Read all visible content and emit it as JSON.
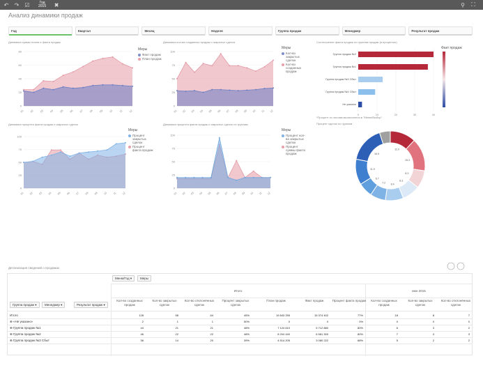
{
  "toolbar": {
    "selection_label": "Год",
    "selection_value": "2015"
  },
  "sheet_title": "Анализ динамики продаж",
  "filters": [
    {
      "label": "Год",
      "active": true
    },
    {
      "label": "Квартал",
      "active": false
    },
    {
      "label": "Месяц",
      "active": false
    },
    {
      "label": "Неделя",
      "active": false
    },
    {
      "label": "Группа продаж",
      "active": false
    },
    {
      "label": "Менеджер",
      "active": false
    },
    {
      "label": "Результат продаж",
      "active": false
    }
  ],
  "colors": {
    "blue": "#7f8fc9",
    "pink": "#e8a0ab",
    "dark_red": "#b5283a",
    "light_blue": "#a9cdef",
    "mid_blue": "#5f9fde",
    "navy": "#2e4da6",
    "grey": "#9e9e9e"
  },
  "charts": {
    "c1": {
      "title": "Динамика суммы плана и факта продаж",
      "legend_title": "Меры",
      "legend": [
        "Факт продаж",
        "План продаж"
      ]
    },
    "c2": {
      "title": "Динамика кол-ва созданных продаж и закрытых сделок",
      "legend_title": "Меры",
      "legend": [
        "Кол-во закрытых сделок",
        "Кол-во созданных продаж"
      ]
    },
    "c3": {
      "title": "Динамика процента факта продаж и закрытых сделок",
      "legend_title": "Меры",
      "legend": [
        "Процент закрытых сделок",
        "Процент факта продаж"
      ]
    },
    "c4": {
      "title": "Динамика процента факта продаж и закрытых сделок по группам",
      "legend_title": "Меры",
      "legend": [
        "Процент кол-ва закрытых сделок",
        "Процент суммы факта продаж"
      ]
    },
    "c5": {
      "title": "Соотношение факта продаж по группам продаж (в процентах)",
      "legend_title": "Факт продаж",
      "categories": [
        "Группа продаж №2",
        "Группа продаж №1",
        "Группа продаж №3 Сбыт",
        "Группа продаж №4 Сбыт",
        "Не указано"
      ]
    },
    "c6": {
      "title": "Процент сделок по группам",
      "caption1": "*Процент по числам вычисляется в \"Меню/Выбор\"",
      "segment_labels": [
        "12.0",
        "15.3",
        "8.3",
        "8.3",
        "8.4",
        "7.2",
        "6.7",
        "11.9",
        "16.9"
      ]
    }
  },
  "chart_data": [
    {
      "type": "area",
      "title": "Динамика суммы плана и факта продаж",
      "categories": [
        "01",
        "02",
        "03",
        "04",
        "05",
        "06",
        "07",
        "08",
        "09",
        "10",
        "11",
        "12"
      ],
      "series": [
        {
          "name": "Факт продаж",
          "values": [
            22,
            20,
            26,
            24,
            28,
            26,
            27,
            30,
            31,
            31,
            30,
            29
          ]
        },
        {
          "name": "План продаж",
          "values": [
            24,
            24,
            37,
            36,
            45,
            50,
            58,
            66,
            70,
            72,
            62,
            56
          ]
        }
      ],
      "ylim": [
        0,
        80
      ]
    },
    {
      "type": "area",
      "title": "Динамика кол-ва созданных продаж и закрытых сделок",
      "categories": [
        "01",
        "02",
        "03",
        "04",
        "05",
        "06",
        "07",
        "08",
        "09",
        "10",
        "11",
        "12"
      ],
      "series": [
        {
          "name": "Кол-во закрытых сделок",
          "values": [
            28,
            27,
            28,
            25,
            30,
            30,
            29,
            28,
            29,
            30,
            32,
            33
          ]
        },
        {
          "name": "Кол-во созданных продаж",
          "values": [
            50,
            80,
            62,
            78,
            74,
            96,
            74,
            74,
            70,
            64,
            72,
            84
          ]
        }
      ],
      "ylim": [
        0,
        100
      ]
    },
    {
      "type": "area",
      "title": "Динамика процента факта продаж и закрытых сделок",
      "categories": [
        "01",
        "02",
        "03",
        "04",
        "05",
        "06",
        "07",
        "08",
        "09",
        "10",
        "11",
        "12"
      ],
      "series": [
        {
          "name": "Процент закрытых сделок",
          "values": [
            50,
            52,
            60,
            64,
            70,
            62,
            68,
            70,
            72,
            74,
            86,
            88
          ]
        },
        {
          "name": "Процент факта продаж",
          "values": [
            50,
            52,
            46,
            74,
            74,
            56,
            68,
            56,
            64,
            60,
            62,
            66
          ]
        }
      ],
      "ylim": [
        0,
        100
      ]
    },
    {
      "type": "area",
      "title": "Динамика процента факта продаж и закрытых сделок по группам",
      "categories": [
        "01",
        "02",
        "03",
        "04",
        "05",
        "06",
        "07",
        "08",
        "09",
        "10",
        "11",
        "12"
      ],
      "series": [
        {
          "name": "Процент кол-ва закрытых сделок",
          "values": [
            20,
            20,
            20,
            20,
            20,
            95,
            20,
            15,
            20,
            20,
            20,
            20
          ]
        },
        {
          "name": "Процент суммы факта продаж",
          "values": [
            18,
            18,
            18,
            18,
            18,
            82,
            20,
            52,
            20,
            32,
            20,
            20
          ]
        }
      ],
      "ylim": [
        0,
        100
      ]
    },
    {
      "type": "bar",
      "title": "Соотношение факта продаж по группам продаж (в процентах)",
      "categories": [
        "Группа продаж №2",
        "Группа продаж №1",
        "Группа продаж №3 Сбыт",
        "Группа продаж №4 Сбыт",
        "Не указано"
      ],
      "values": [
        40,
        37,
        13,
        9,
        2
      ],
      "xlim": [
        0,
        40
      ]
    },
    {
      "type": "pie",
      "title": "Процент сделок по группам",
      "values": [
        12.0,
        15.3,
        8.3,
        8.3,
        8.4,
        7.2,
        6.7,
        11.9,
        16.9,
        5.0
      ],
      "colors": [
        "#b5283a",
        "#e0737d",
        "#f3d4d6",
        "#dceaf8",
        "#a9cdef",
        "#7fb3e6",
        "#5f9fde",
        "#3f7fd0",
        "#2e5fb6",
        "#a0a0a0"
      ]
    }
  ],
  "table": {
    "title": "Детализация сведений о продажах",
    "pivot_pills": [
      "Меню/Год",
      "Меры"
    ],
    "row_dims": [
      "Группа продаж",
      "Менеджер",
      "Результат продаж"
    ],
    "top_header": "Итого",
    "period_header": "июн 2015",
    "columns": [
      "Кол-во созданных продаж",
      "Кол-во закрытых сделок",
      "Кол-во отклонённых сделок",
      "Процент закрытых сделок",
      "План продаж",
      "Факт продаж",
      "Процент факта продаж",
      "Кол-во созданных продаж",
      "Кол-во закрытых сделок",
      "Кол-во отклонённых сделок"
    ],
    "rows": [
      {
        "label": "Итого",
        "values": [
          "128",
          "58",
          "64",
          "45%",
          "19 843 255",
          "15 374 402",
          "77%",
          "18",
          "8",
          "7"
        ]
      },
      {
        "label": "«Не указано»",
        "values": [
          "2",
          "1",
          "1",
          "50%",
          "0",
          "0",
          "0%",
          "0",
          "0",
          "0"
        ]
      },
      {
        "label": "Группа продаж №1",
        "values": [
          "44",
          "21",
          "21",
          "48%",
          "7 124 610",
          "5 712 880",
          "80%",
          "6",
          "3",
          "2"
        ]
      },
      {
        "label": "Группа продаж №2",
        "values": [
          "46",
          "22",
          "22",
          "48%",
          "8 204 440",
          "6 581 300",
          "80%",
          "7",
          "3",
          "3"
        ]
      },
      {
        "label": "Группа продаж №3 Сбыт",
        "values": [
          "36",
          "14",
          "20",
          "39%",
          "4 514 205",
          "3 080 222",
          "68%",
          "5",
          "2",
          "2"
        ]
      }
    ]
  }
}
